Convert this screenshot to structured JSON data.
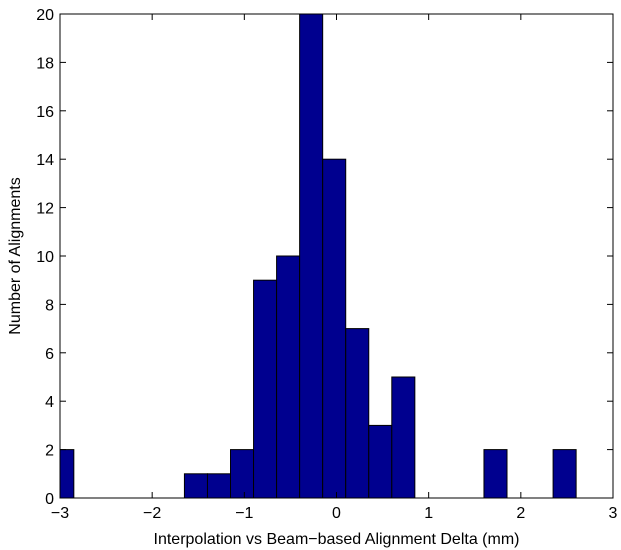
{
  "chart_data": {
    "type": "bar",
    "title": "",
    "xlabel": "Interpolation vs Beam−based Alignment Delta (mm)",
    "ylabel": "Number of Alignments",
    "xlim": [
      -3,
      3
    ],
    "ylim": [
      0,
      20
    ],
    "xticks": [
      -3,
      -2,
      -1,
      0,
      1,
      2,
      3
    ],
    "xtick_labels": [
      "−3",
      "−2",
      "−1",
      "0",
      "1",
      "2",
      "3"
    ],
    "yticks": [
      0,
      2,
      4,
      6,
      8,
      10,
      12,
      14,
      16,
      18,
      20
    ],
    "ytick_labels": [
      "0",
      "2",
      "4",
      "6",
      "8",
      "10",
      "12",
      "14",
      "16",
      "18",
      "20"
    ],
    "grid": false,
    "legend": "none",
    "bar_color": "#00008f",
    "bins": [
      {
        "x0": -3.0,
        "x1": -2.85,
        "count": 2
      },
      {
        "x0": -1.65,
        "x1": -1.4,
        "count": 1
      },
      {
        "x0": -1.4,
        "x1": -1.15,
        "count": 1
      },
      {
        "x0": -1.15,
        "x1": -0.9,
        "count": 2
      },
      {
        "x0": -0.9,
        "x1": -0.65,
        "count": 9
      },
      {
        "x0": -0.65,
        "x1": -0.4,
        "count": 10
      },
      {
        "x0": -0.4,
        "x1": -0.15,
        "count": 20
      },
      {
        "x0": -0.15,
        "x1": 0.1,
        "count": 14
      },
      {
        "x0": 0.1,
        "x1": 0.35,
        "count": 7
      },
      {
        "x0": 0.35,
        "x1": 0.6,
        "count": 3
      },
      {
        "x0": 0.6,
        "x1": 0.85,
        "count": 5
      },
      {
        "x0": 1.6,
        "x1": 1.85,
        "count": 2
      },
      {
        "x0": 2.35,
        "x1": 2.6,
        "count": 2
      }
    ]
  }
}
